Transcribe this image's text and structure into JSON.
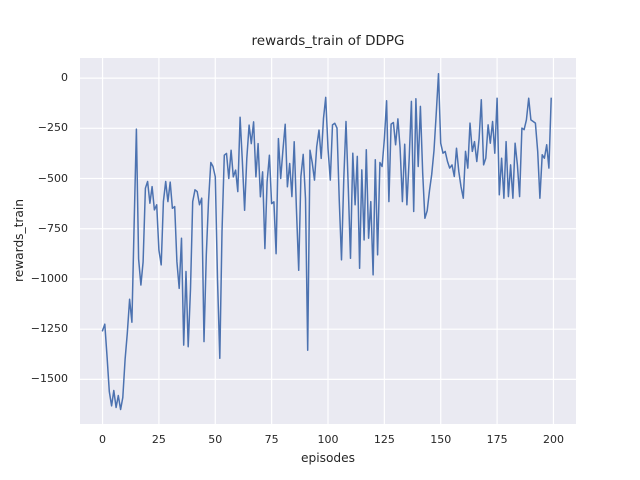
{
  "chart_data": {
    "type": "line",
    "title": "rewards_train of DDPG",
    "xlabel": "episodes",
    "ylabel": "rewards_train",
    "legend": false,
    "grid": true,
    "plot_background": "#EAEAF2",
    "grid_color": "#FFFFFF",
    "text_color": "#262626",
    "xlim": [
      -10,
      210
    ],
    "ylim": [
      -1722,
      100
    ],
    "xtick_values": [
      0,
      25,
      50,
      75,
      100,
      125,
      150,
      175,
      200
    ],
    "xtick_labels": [
      "0",
      "25",
      "50",
      "75",
      "100",
      "125",
      "150",
      "175",
      "200"
    ],
    "ytick_values": [
      0,
      -250,
      -500,
      -750,
      -1000,
      -1250,
      -1500
    ],
    "ytick_labels": [
      "0",
      "−250",
      "−500",
      "−750",
      "−1000",
      "−1250",
      "−1500"
    ],
    "x_start": 0,
    "x_step": 1,
    "series": [
      {
        "name": "rewards_train",
        "color": "#4C72B0",
        "line_width": 1.5,
        "values": [
          -1258,
          -1225,
          -1390,
          -1560,
          -1632,
          -1555,
          -1640,
          -1580,
          -1650,
          -1590,
          -1400,
          -1270,
          -1101,
          -1215,
          -735,
          -254,
          -900,
          -1030,
          -915,
          -548,
          -515,
          -623,
          -540,
          -656,
          -631,
          -856,
          -930,
          -615,
          -515,
          -615,
          -518,
          -648,
          -640,
          -914,
          -1047,
          -797,
          -1329,
          -963,
          -1337,
          -1050,
          -615,
          -556,
          -565,
          -631,
          -598,
          -1312,
          -880,
          -615,
          -420,
          -440,
          -492,
          -1000,
          -1395,
          -766,
          -384,
          -375,
          -500,
          -359,
          -492,
          -458,
          -565,
          -195,
          -409,
          -658,
          -400,
          -234,
          -326,
          -218,
          -492,
          -326,
          -591,
          -467,
          -849,
          -517,
          -384,
          -625,
          -616,
          -874,
          -301,
          -500,
          -360,
          -230,
          -541,
          -425,
          -590,
          -317,
          -648,
          -957,
          -490,
          -380,
          -600,
          -1355,
          -359,
          -420,
          -508,
          -342,
          -259,
          -400,
          -200,
          -96,
          -350,
          -508,
          -233,
          -225,
          -249,
          -615,
          -905,
          -500,
          -216,
          -548,
          -897,
          -374,
          -631,
          -390,
          -947,
          -457,
          -806,
          -357,
          -797,
          -615,
          -980,
          -407,
          -880,
          -420,
          -440,
          -300,
          -113,
          -615,
          -229,
          -221,
          -332,
          -203,
          -349,
          -615,
          -329,
          -631,
          -400,
          -116,
          -664,
          -103,
          -440,
          -141,
          -473,
          -698,
          -660,
          -560,
          -480,
          -360,
          -180,
          22,
          -324,
          -374,
          -365,
          -415,
          -448,
          -432,
          -490,
          -349,
          -465,
          -540,
          -598,
          -365,
          -448,
          -224,
          -365,
          -316,
          -415,
          -300,
          -108,
          -432,
          -399,
          -233,
          -324,
          -216,
          -374,
          -100,
          -581,
          -399,
          -598,
          -316,
          -590,
          -432,
          -598,
          -324,
          -432,
          -590,
          -249,
          -257,
          -208,
          -100,
          -208,
          -216,
          -224,
          -365,
          -598,
          -382,
          -399,
          -332,
          -448,
          -100
        ]
      }
    ]
  }
}
